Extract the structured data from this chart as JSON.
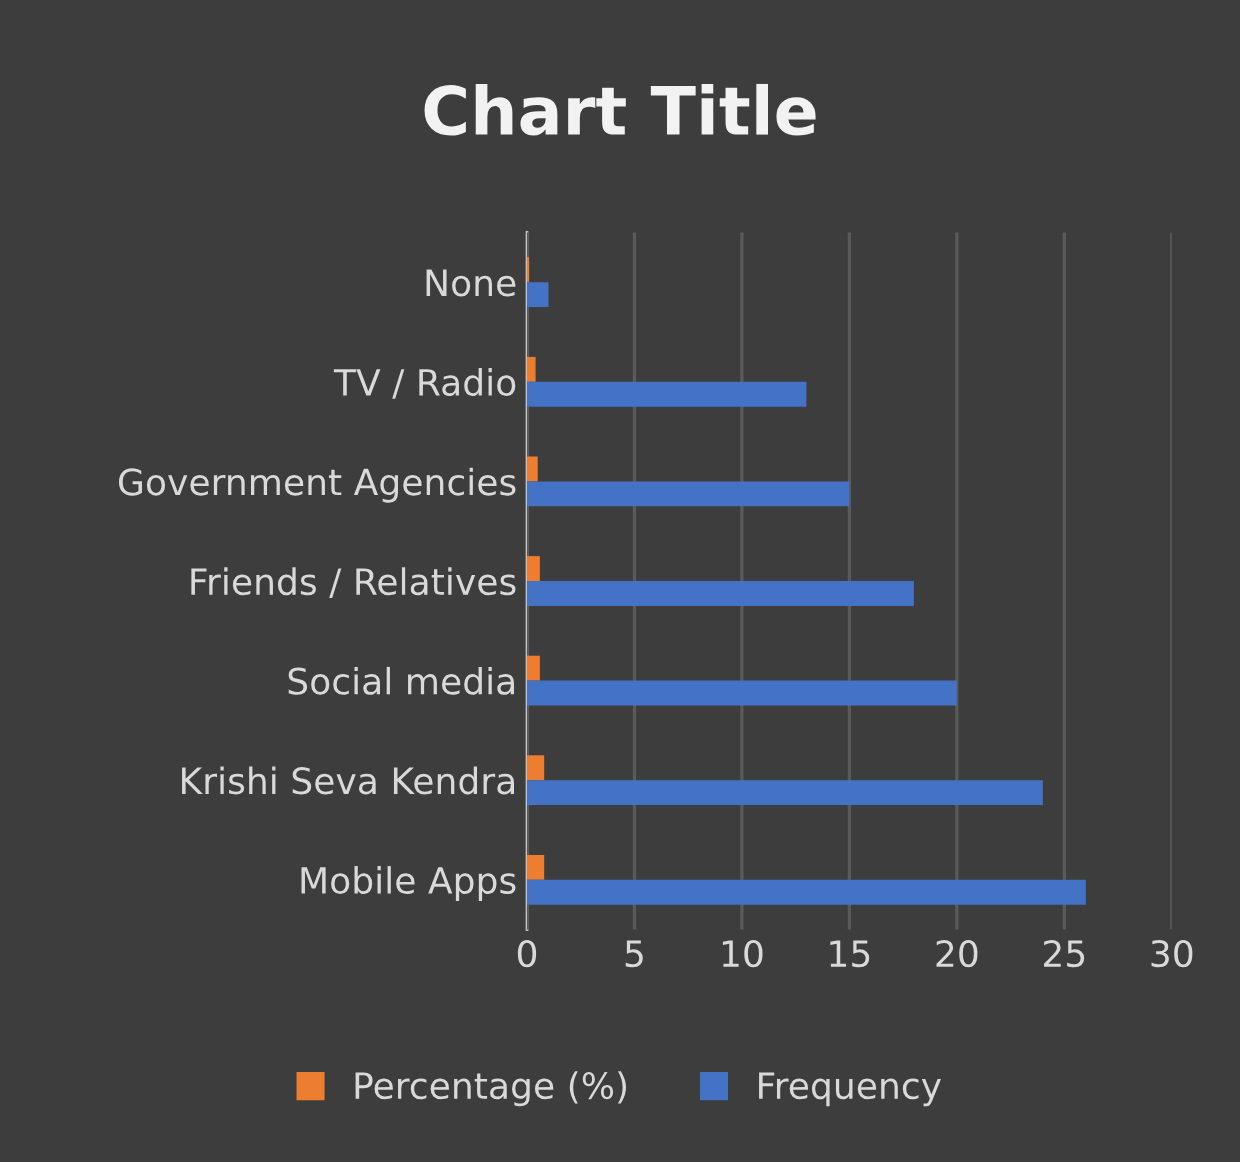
{
  "chart_data": {
    "type": "bar",
    "orientation": "horizontal",
    "title": "Chart Title",
    "categories": [
      "None",
      "TV / Radio",
      "Government Agencies",
      "Friends / Relatives",
      "Social media",
      "Krishi Seva Kendra",
      "Mobile Apps"
    ],
    "series": [
      {
        "name": "Percentage (%)",
        "color": "#ed7d31",
        "values": [
          0.1,
          0.4,
          0.5,
          0.6,
          0.6,
          0.8,
          0.8
        ]
      },
      {
        "name": "Frequency",
        "color": "#4472c4",
        "values": [
          1,
          13,
          15,
          18,
          20,
          24,
          26
        ]
      }
    ],
    "xlim": [
      0,
      30
    ],
    "xticks": [
      0,
      5,
      10,
      15,
      20,
      25,
      30
    ],
    "grid": "x",
    "legend": "bottom"
  }
}
